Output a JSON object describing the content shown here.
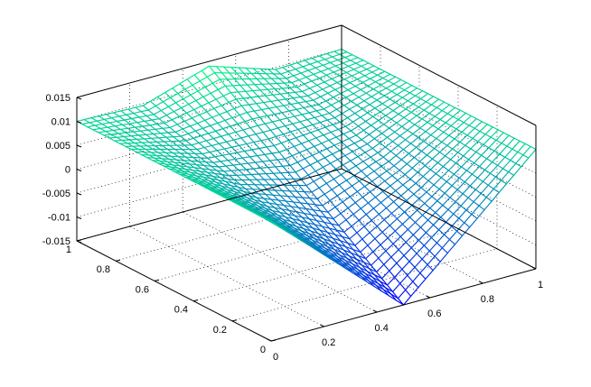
{
  "chart_data": {
    "type": "surface3d",
    "title": "",
    "xlabel": "",
    "ylabel": "",
    "zlabel": "",
    "xlim": [
      0,
      1
    ],
    "ylim": [
      0,
      1
    ],
    "zlim": [
      -0.015,
      0.015
    ],
    "x_ticks": [
      0,
      0.2,
      0.4,
      0.6,
      0.8,
      1
    ],
    "x_tick_labels": [
      "0",
      "0.2",
      "0.4",
      "0.6",
      "0.8",
      "1"
    ],
    "y_ticks": [
      0,
      0.2,
      0.4,
      0.6,
      0.8,
      1
    ],
    "y_tick_labels": [
      "0",
      "0.2",
      "0.4",
      "0.6",
      "0.8",
      "1"
    ],
    "z_ticks": [
      -0.015,
      -0.01,
      -0.005,
      0,
      0.005,
      0.01,
      0.015
    ],
    "z_tick_labels": [
      "-0.015",
      "-0.01",
      "-0.005",
      "0",
      "0.005",
      "0.01",
      "0.015"
    ],
    "grid": true,
    "colormap": "winter",
    "colormap_low": "#0000ff",
    "colormap_high": "#00ff80",
    "surface_samples": {
      "x": [
        0,
        0.25,
        0.5,
        0.75,
        1
      ],
      "y": [
        0,
        0.25,
        0.5,
        0.75,
        1
      ],
      "z": [
        [
          0.01,
          -0.0025,
          -0.015,
          -0.0025,
          0.01
        ],
        [
          0.01,
          0.0005,
          -0.0078,
          0.0005,
          0.01
        ],
        [
          0.01,
          0.0035,
          -0.0005,
          0.0035,
          0.01
        ],
        [
          0.01,
          0.0065,
          0.0068,
          0.0065,
          0.01
        ],
        [
          0.01,
          0.0095,
          0.014,
          0.0095,
          0.01
        ]
      ]
    }
  }
}
